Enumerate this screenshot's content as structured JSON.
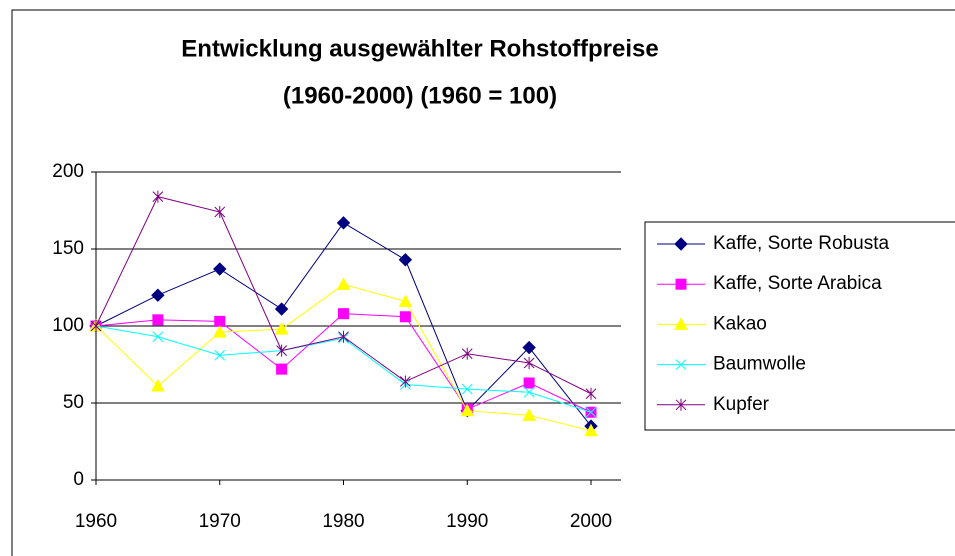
{
  "chart_data": {
    "type": "line",
    "title": [
      "Entwicklung ausgewählter Rohstoffpreise",
      "(1960-2000) (1960 = 100)"
    ],
    "x": [
      1960,
      1965,
      1970,
      1975,
      1980,
      1985,
      1990,
      1995,
      2000
    ],
    "xlim": [
      1960,
      2000
    ],
    "xticks": [
      1960,
      1970,
      1980,
      1990,
      2000
    ],
    "ylim": [
      0,
      200
    ],
    "yticks": [
      0,
      50,
      100,
      150,
      200
    ],
    "grid": true,
    "series": [
      {
        "name": "Kaffe, Sorte Robusta",
        "color": "#000080",
        "marker": "diamond",
        "values": [
          100,
          120,
          137,
          111,
          167,
          143,
          45,
          86,
          35
        ]
      },
      {
        "name": "Kaffe, Sorte Arabica",
        "color": "#ff00ff",
        "marker": "square",
        "values": [
          100,
          104,
          103,
          72,
          108,
          106,
          46,
          63,
          44
        ]
      },
      {
        "name": "Kakao",
        "color": "#ffff00",
        "marker": "triangle",
        "values": [
          100,
          61,
          96,
          98,
          127,
          116,
          45,
          42,
          32
        ]
      },
      {
        "name": "Baumwolle",
        "color": "#00ffff",
        "marker": "x",
        "values": [
          100,
          93,
          81,
          84,
          92,
          62,
          59,
          57,
          44
        ]
      },
      {
        "name": "Kupfer",
        "color": "#800080",
        "marker": "star",
        "values": [
          100,
          184,
          174,
          84,
          93,
          64,
          82,
          76,
          56
        ]
      }
    ]
  }
}
